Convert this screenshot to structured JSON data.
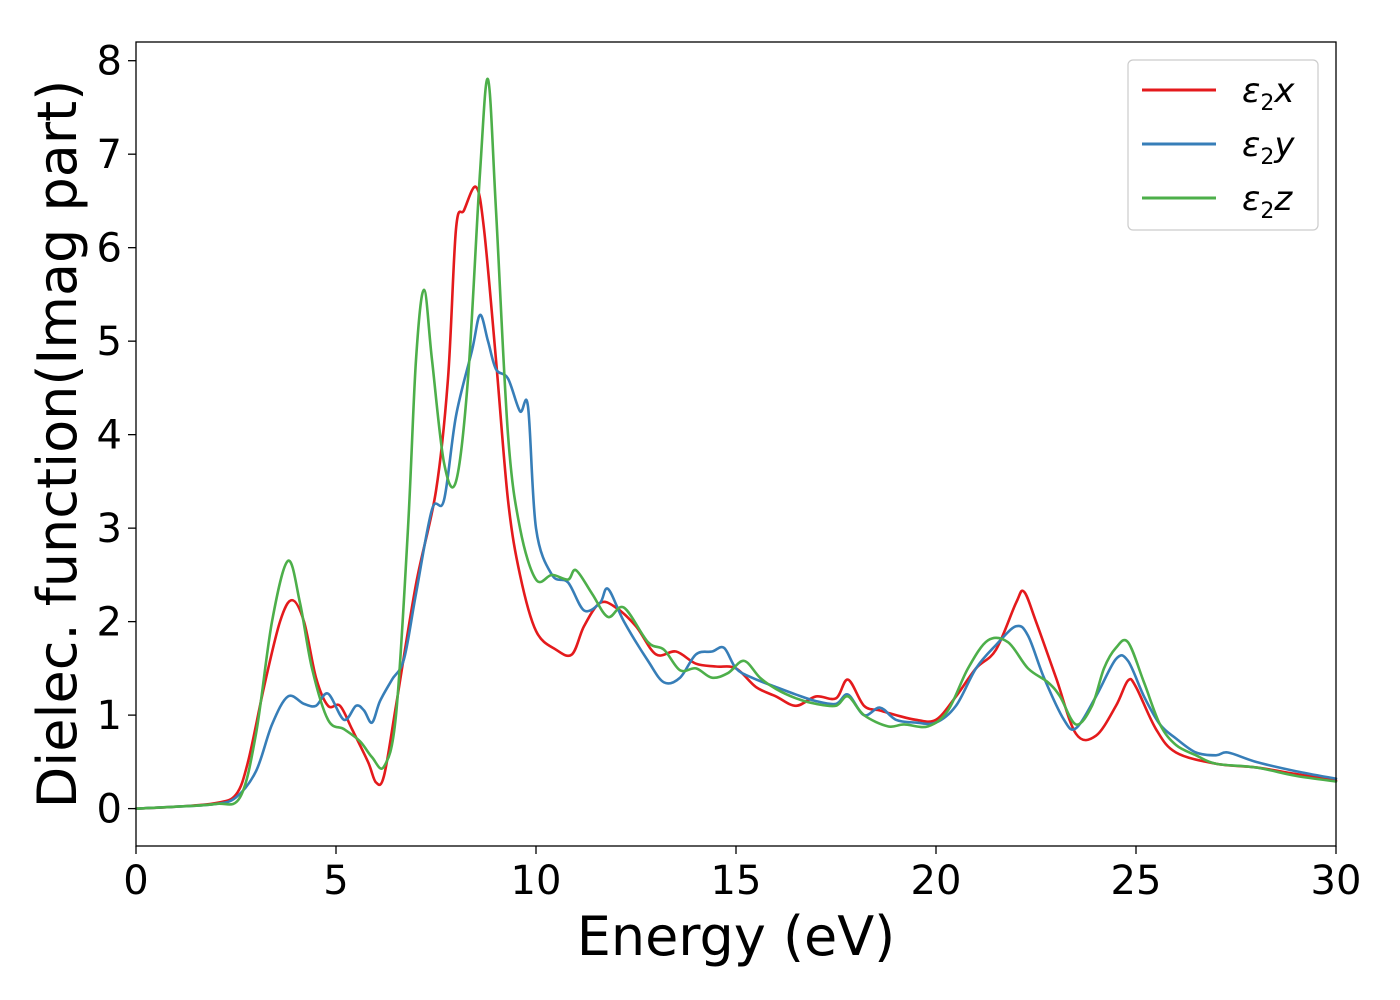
{
  "chart_data": {
    "type": "line",
    "xlabel": "Energy (eV)",
    "ylabel": "Dielec. function(Imag part)",
    "xlim": [
      0,
      30
    ],
    "ylim": [
      -0.4,
      8.2
    ],
    "xticks": [
      0,
      5,
      10,
      15,
      20,
      25,
      30
    ],
    "yticks": [
      0,
      1,
      2,
      3,
      4,
      5,
      6,
      7,
      8
    ],
    "grid": false,
    "legend_position": "top-right",
    "series": [
      {
        "name": "ε2x",
        "legend_base": "ε",
        "legend_sub": "2",
        "legend_tail": "x",
        "color": "#e41a1c",
        "x": [
          0,
          1,
          2,
          2.5,
          2.8,
          3.2,
          3.6,
          3.9,
          4.2,
          4.5,
          4.8,
          5.1,
          5.4,
          5.8,
          6.0,
          6.2,
          6.5,
          7.0,
          7.5,
          7.8,
          8.0,
          8.2,
          8.5,
          8.7,
          9.0,
          9.3,
          9.6,
          10.0,
          10.5,
          10.9,
          11.2,
          11.6,
          12.0,
          12.5,
          13.0,
          13.5,
          14.0,
          14.5,
          15.0,
          15.5,
          16.0,
          16.5,
          17.0,
          17.5,
          17.8,
          18.2,
          18.6,
          19.0,
          19.5,
          20.0,
          20.5,
          21.0,
          21.5,
          22.0,
          22.2,
          22.5,
          23.0,
          23.5,
          24.0,
          24.5,
          24.8,
          25.0,
          25.5,
          26.0,
          27.0,
          28.0,
          29.0,
          30.0
        ],
        "y": [
          0.0,
          0.02,
          0.06,
          0.15,
          0.5,
          1.3,
          2.0,
          2.23,
          2.0,
          1.4,
          1.1,
          1.1,
          0.85,
          0.5,
          0.28,
          0.35,
          1.1,
          2.4,
          3.4,
          4.6,
          6.2,
          6.4,
          6.65,
          6.2,
          4.8,
          3.3,
          2.5,
          1.9,
          1.7,
          1.65,
          1.95,
          2.2,
          2.15,
          1.95,
          1.65,
          1.68,
          1.55,
          1.52,
          1.5,
          1.3,
          1.2,
          1.1,
          1.2,
          1.18,
          1.38,
          1.1,
          1.05,
          1.0,
          0.95,
          0.95,
          1.2,
          1.5,
          1.7,
          2.2,
          2.32,
          2.0,
          1.4,
          0.8,
          0.78,
          1.1,
          1.37,
          1.3,
          0.85,
          0.6,
          0.48,
          0.44,
          0.37,
          0.3
        ]
      },
      {
        "name": "ε2y",
        "legend_base": "ε",
        "legend_sub": "2",
        "legend_tail": "y",
        "color": "#377eb8",
        "x": [
          0,
          1,
          2,
          2.5,
          3.0,
          3.4,
          3.8,
          4.2,
          4.5,
          4.8,
          5.2,
          5.5,
          5.7,
          5.9,
          6.1,
          6.4,
          6.7,
          7.0,
          7.4,
          7.7,
          8.0,
          8.4,
          8.6,
          8.8,
          9.0,
          9.3,
          9.6,
          9.8,
          10.0,
          10.4,
          10.8,
          11.2,
          11.6,
          11.8,
          12.2,
          12.8,
          13.2,
          13.6,
          14.0,
          14.4,
          14.7,
          15.0,
          15.4,
          16.0,
          16.5,
          17.0,
          17.5,
          17.8,
          18.2,
          18.6,
          19.0,
          19.5,
          20.0,
          20.5,
          21.0,
          21.5,
          22.0,
          22.3,
          22.7,
          23.2,
          23.5,
          24.0,
          24.5,
          24.8,
          25.2,
          25.6,
          26.0,
          26.5,
          27.0,
          27.3,
          28.0,
          29.0,
          30.0
        ],
        "y": [
          0.0,
          0.02,
          0.05,
          0.12,
          0.4,
          0.9,
          1.2,
          1.12,
          1.1,
          1.23,
          0.95,
          1.1,
          1.05,
          0.92,
          1.15,
          1.38,
          1.6,
          2.3,
          3.2,
          3.3,
          4.2,
          4.9,
          5.28,
          5.0,
          4.7,
          4.6,
          4.25,
          4.3,
          3.0,
          2.5,
          2.42,
          2.12,
          2.2,
          2.35,
          2.0,
          1.58,
          1.35,
          1.4,
          1.65,
          1.68,
          1.72,
          1.5,
          1.4,
          1.3,
          1.22,
          1.15,
          1.12,
          1.22,
          1.0,
          1.08,
          0.95,
          0.92,
          0.92,
          1.1,
          1.5,
          1.75,
          1.95,
          1.85,
          1.4,
          0.95,
          0.86,
          1.2,
          1.6,
          1.58,
          1.2,
          0.9,
          0.75,
          0.6,
          0.57,
          0.6,
          0.5,
          0.4,
          0.32
        ]
      },
      {
        "name": "ε2z",
        "legend_base": "ε",
        "legend_sub": "2",
        "legend_tail": "z",
        "color": "#4daf4a",
        "x": [
          0,
          1,
          2,
          2.6,
          3.0,
          3.4,
          3.8,
          4.1,
          4.4,
          4.8,
          5.2,
          5.6,
          5.9,
          6.2,
          6.5,
          6.8,
          7.0,
          7.2,
          7.4,
          7.7,
          8.0,
          8.3,
          8.6,
          8.8,
          9.0,
          9.3,
          9.6,
          10.0,
          10.4,
          10.8,
          11.0,
          11.4,
          11.8,
          12.2,
          12.8,
          13.2,
          13.6,
          14.0,
          14.4,
          14.8,
          15.2,
          15.6,
          16.0,
          16.5,
          17.0,
          17.5,
          17.8,
          18.2,
          18.8,
          19.2,
          19.8,
          20.3,
          20.8,
          21.3,
          21.8,
          22.3,
          22.8,
          23.1,
          23.5,
          23.9,
          24.2,
          24.5,
          24.8,
          25.2,
          25.6,
          26.0,
          26.5,
          27.0,
          28.0,
          29.0,
          30.0
        ],
        "y": [
          0.0,
          0.02,
          0.05,
          0.12,
          0.8,
          2.0,
          2.65,
          2.2,
          1.5,
          0.95,
          0.85,
          0.72,
          0.55,
          0.45,
          1.0,
          3.0,
          4.8,
          5.55,
          4.8,
          3.7,
          3.5,
          4.6,
          6.8,
          7.8,
          6.4,
          4.0,
          3.0,
          2.45,
          2.5,
          2.45,
          2.55,
          2.3,
          2.05,
          2.15,
          1.78,
          1.7,
          1.48,
          1.5,
          1.4,
          1.45,
          1.58,
          1.4,
          1.28,
          1.18,
          1.12,
          1.1,
          1.2,
          1.0,
          0.88,
          0.9,
          0.88,
          1.05,
          1.5,
          1.8,
          1.78,
          1.5,
          1.35,
          1.2,
          0.9,
          1.1,
          1.5,
          1.72,
          1.78,
          1.35,
          0.9,
          0.68,
          0.57,
          0.48,
          0.44,
          0.35,
          0.29
        ]
      }
    ]
  }
}
